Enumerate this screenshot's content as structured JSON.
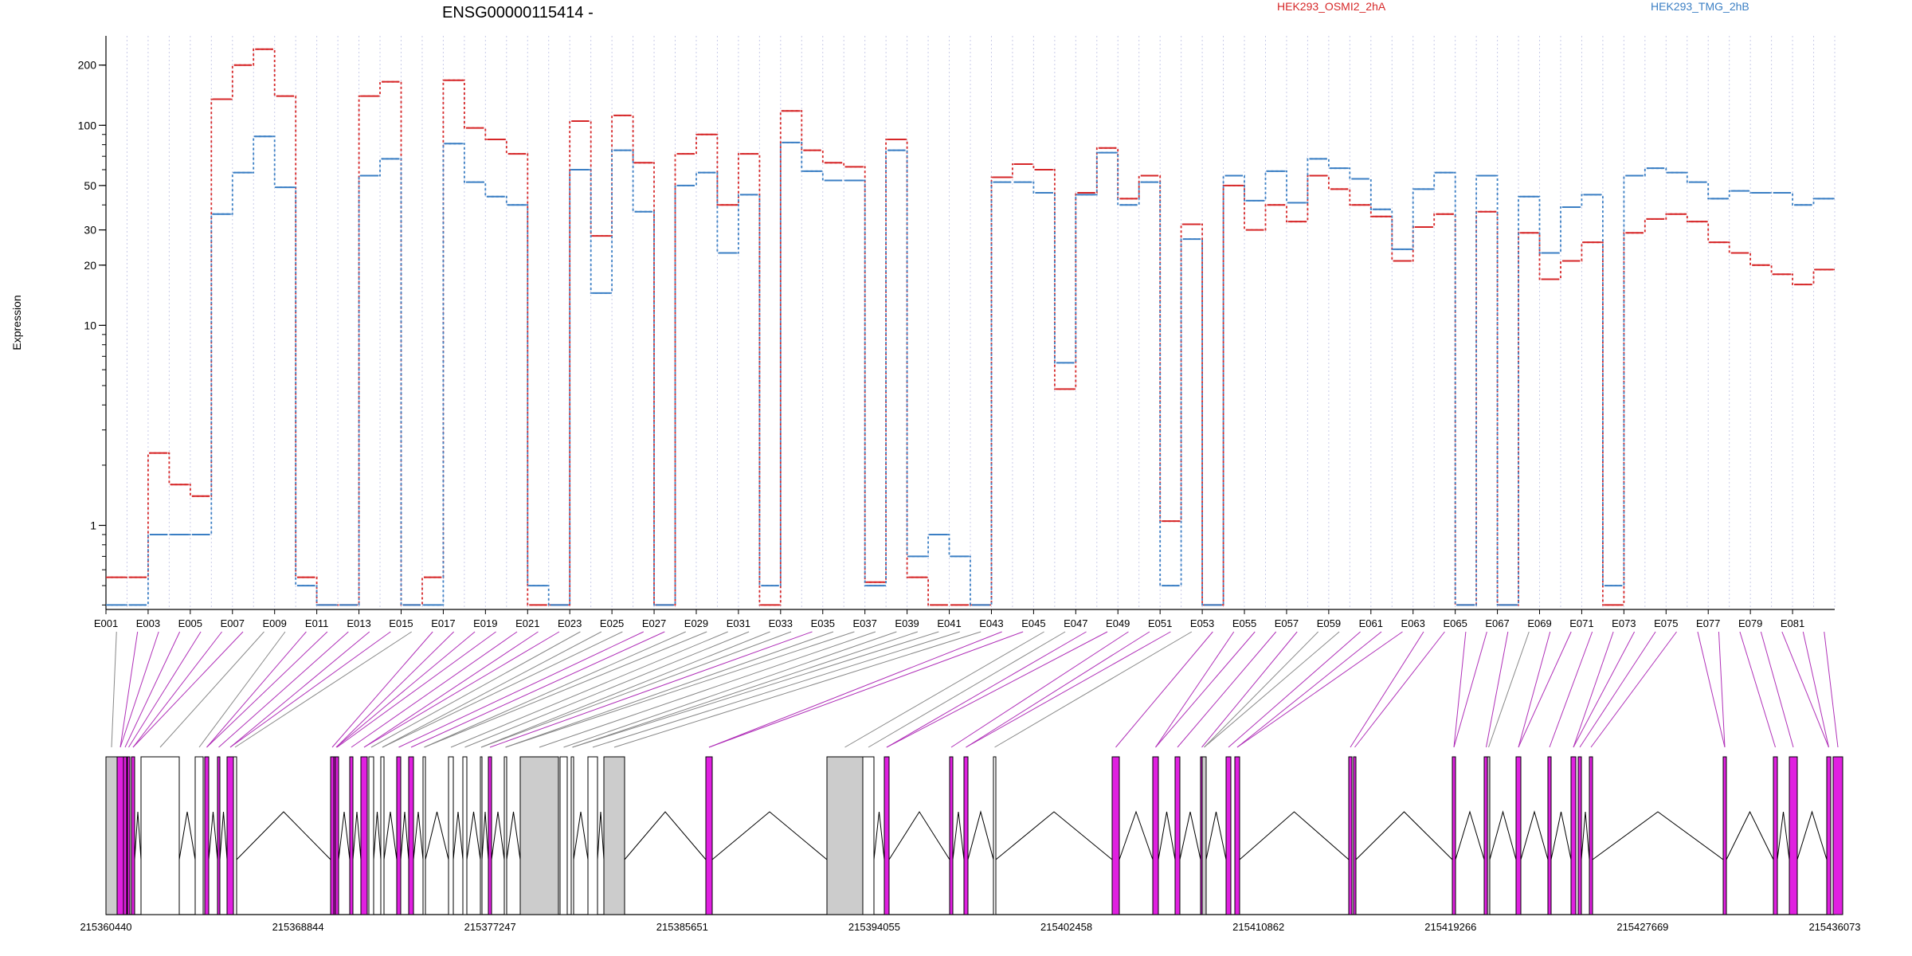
{
  "chart_data": {
    "type": "line",
    "title": "ENSG00000115414 -",
    "xlabel": "",
    "ylabel": "Expression",
    "yscale": "log",
    "ylim": [
      0.38,
      280
    ],
    "y_ticks": [
      1,
      10,
      20,
      30,
      50,
      100,
      200
    ],
    "grid": "vertical dotted lines per exon",
    "legend_position": "top-right",
    "categories": [
      "E001",
      "E002",
      "E003",
      "E004",
      "E005",
      "E006",
      "E007",
      "E008",
      "E009",
      "E010",
      "E011",
      "E012",
      "E013",
      "E014",
      "E015",
      "E016",
      "E017",
      "E018",
      "E019",
      "E020",
      "E021",
      "E022",
      "E023",
      "E024",
      "E025",
      "E026",
      "E027",
      "E028",
      "E029",
      "E030",
      "E031",
      "E032",
      "E033",
      "E034",
      "E035",
      "E036",
      "E037",
      "E038",
      "E039",
      "E040",
      "E041",
      "E042",
      "E043",
      "E044",
      "E045",
      "E046",
      "E047",
      "E048",
      "E049",
      "E050",
      "E051",
      "E052",
      "E053",
      "E054",
      "E055",
      "E056",
      "E057",
      "E058",
      "E059",
      "E060",
      "E061",
      "E062",
      "E063",
      "E064",
      "E065",
      "E066",
      "E067",
      "E068",
      "E069",
      "E070",
      "E071",
      "E072",
      "E073",
      "E074",
      "E075",
      "E076",
      "E077",
      "E078",
      "E079",
      "E080",
      "E081",
      "E082"
    ],
    "tick_labels": [
      "E001",
      "E003",
      "E005",
      "E007",
      "E009",
      "E011",
      "E013",
      "E015",
      "E017",
      "E019",
      "E021",
      "E023",
      "E025",
      "E027",
      "E029",
      "E031",
      "E033",
      "E035",
      "E037",
      "E039",
      "E041",
      "E043",
      "E045",
      "E047",
      "E049",
      "E051",
      "E053",
      "E055",
      "E057",
      "E059",
      "E061",
      "E063",
      "E065",
      "E067",
      "E069",
      "E071",
      "E073",
      "E075",
      "E077",
      "E079",
      "E081"
    ],
    "series": [
      {
        "name": "HEK293_OSMI2_2hA",
        "color": "#d62728",
        "values": [
          0.55,
          0.55,
          2.3,
          1.6,
          1.4,
          135,
          200,
          240,
          140,
          0.55,
          0.4,
          0.4,
          140,
          165,
          0.4,
          0.55,
          168,
          97,
          85,
          72,
          0.4,
          0.4,
          105,
          28,
          112,
          65,
          0.4,
          72,
          90,
          40,
          72,
          0.4,
          118,
          75,
          65,
          62,
          0.52,
          85,
          0.55,
          0.4,
          0.4,
          0.4,
          55,
          64,
          60,
          4.8,
          46,
          77,
          43,
          56,
          1.05,
          32,
          0.4,
          50,
          30,
          40,
          33,
          56,
          48,
          40,
          35,
          21,
          31,
          36,
          0.4,
          37,
          0.4,
          29,
          17,
          21,
          26,
          0.4,
          29,
          34,
          36,
          33,
          26,
          23,
          20,
          18,
          16,
          19
        ]
      },
      {
        "name": "HEK293_TMG_2hB",
        "color": "#3b7fc4",
        "values": [
          0.4,
          0.4,
          0.9,
          0.9,
          0.9,
          36,
          58,
          88,
          49,
          0.5,
          0.4,
          0.4,
          56,
          68,
          0.4,
          0.4,
          81,
          52,
          44,
          40,
          0.5,
          0.4,
          60,
          14.5,
          75,
          37,
          0.4,
          50,
          58,
          23,
          45,
          0.5,
          82,
          59,
          53,
          53,
          0.5,
          75,
          0.7,
          0.9,
          0.7,
          0.4,
          52,
          52,
          46,
          6.5,
          45,
          73,
          40,
          52,
          0.5,
          27,
          0.4,
          56,
          42,
          59,
          41,
          68,
          61,
          54,
          38,
          24,
          48,
          58,
          0.4,
          56,
          0.4,
          44,
          23,
          39,
          45,
          0.5,
          56,
          61,
          58,
          52,
          43,
          47,
          46,
          46,
          40,
          43
        ]
      }
    ],
    "gene_coordinates": [
      "215360440",
      "215368844",
      "215377247",
      "215385651",
      "215394055",
      "215402458",
      "215410862",
      "215419266",
      "215427669",
      "215436073"
    ]
  }
}
